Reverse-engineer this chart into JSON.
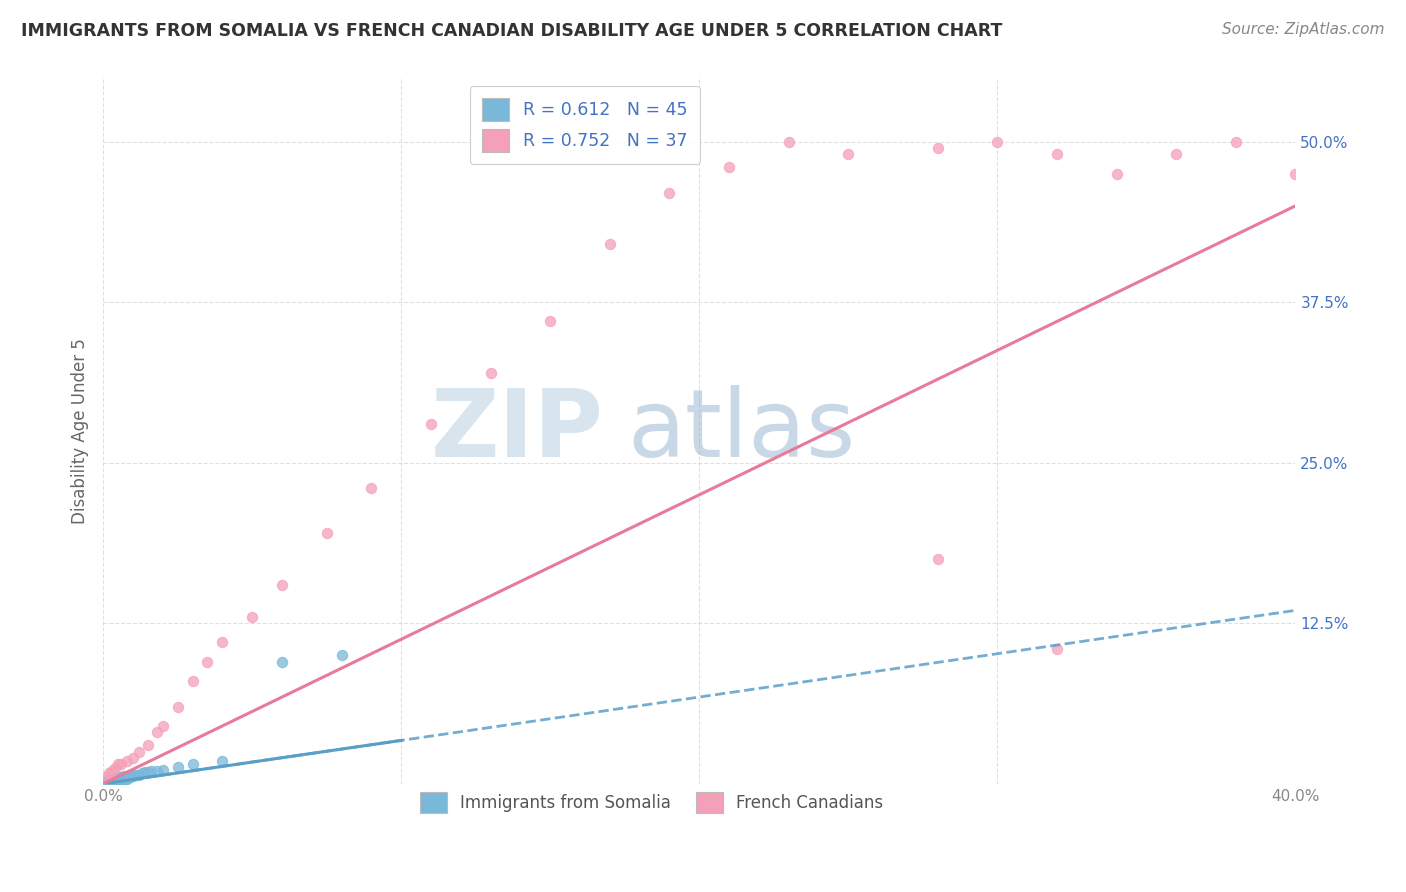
{
  "title": "IMMIGRANTS FROM SOMALIA VS FRENCH CANADIAN DISABILITY AGE UNDER 5 CORRELATION CHART",
  "source": "Source: ZipAtlas.com",
  "ylabel": "Disability Age Under 5",
  "xmin": 0.0,
  "xmax": 0.4,
  "ymin": 0.0,
  "ymax": 0.55,
  "yticks": [
    0.0,
    0.125,
    0.25,
    0.375,
    0.5
  ],
  "ytick_labels": [
    "",
    "12.5%",
    "25.0%",
    "37.5%",
    "50.0%"
  ],
  "xticks": [
    0.0,
    0.1,
    0.2,
    0.3,
    0.4
  ],
  "xtick_labels": [
    "0.0%",
    "",
    "",
    "",
    "40.0%"
  ],
  "blue_color": "#7ab8d9",
  "pink_color": "#f4a0b8",
  "blue_line_color": "#5a9fc8",
  "pink_line_color": "#e87a9a",
  "blue_R": 0.612,
  "blue_N": 45,
  "pink_R": 0.752,
  "pink_N": 37,
  "legend_label_blue": "Immigrants from Somalia",
  "legend_label_pink": "French Canadians",
  "blue_scatter_x": [
    0.001,
    0.001,
    0.002,
    0.002,
    0.002,
    0.003,
    0.003,
    0.003,
    0.003,
    0.004,
    0.004,
    0.004,
    0.004,
    0.005,
    0.005,
    0.005,
    0.005,
    0.006,
    0.006,
    0.006,
    0.006,
    0.007,
    0.007,
    0.007,
    0.007,
    0.008,
    0.008,
    0.008,
    0.009,
    0.009,
    0.01,
    0.01,
    0.011,
    0.012,
    0.013,
    0.014,
    0.015,
    0.016,
    0.018,
    0.02,
    0.025,
    0.03,
    0.04,
    0.06,
    0.08
  ],
  "blue_scatter_y": [
    0.001,
    0.002,
    0.001,
    0.002,
    0.003,
    0.001,
    0.002,
    0.003,
    0.004,
    0.002,
    0.003,
    0.003,
    0.004,
    0.002,
    0.003,
    0.004,
    0.005,
    0.003,
    0.004,
    0.004,
    0.005,
    0.003,
    0.004,
    0.005,
    0.006,
    0.004,
    0.005,
    0.006,
    0.005,
    0.006,
    0.006,
    0.007,
    0.007,
    0.007,
    0.008,
    0.009,
    0.009,
    0.01,
    0.01,
    0.011,
    0.013,
    0.015,
    0.018,
    0.095,
    0.1
  ],
  "pink_scatter_x": [
    0.001,
    0.002,
    0.003,
    0.004,
    0.005,
    0.006,
    0.008,
    0.01,
    0.012,
    0.015,
    0.018,
    0.02,
    0.025,
    0.03,
    0.035,
    0.04,
    0.05,
    0.06,
    0.075,
    0.09,
    0.11,
    0.13,
    0.15,
    0.17,
    0.19,
    0.21,
    0.23,
    0.25,
    0.28,
    0.3,
    0.32,
    0.34,
    0.36,
    0.38,
    0.4,
    0.32,
    0.28
  ],
  "pink_scatter_y": [
    0.005,
    0.008,
    0.01,
    0.012,
    0.015,
    0.015,
    0.018,
    0.02,
    0.025,
    0.03,
    0.04,
    0.045,
    0.06,
    0.08,
    0.095,
    0.11,
    0.13,
    0.155,
    0.195,
    0.23,
    0.28,
    0.32,
    0.36,
    0.42,
    0.46,
    0.48,
    0.5,
    0.49,
    0.495,
    0.5,
    0.49,
    0.475,
    0.49,
    0.5,
    0.475,
    0.105,
    0.175
  ],
  "blue_trendline_x": [
    0.0,
    0.4
  ],
  "blue_trendline_y": [
    0.0,
    0.135
  ],
  "pink_trendline_x": [
    0.0,
    0.4
  ],
  "pink_trendline_y": [
    0.0,
    0.45
  ],
  "watermark_zip": "ZIP",
  "watermark_atlas": "atlas",
  "background_color": "#ffffff",
  "grid_color": "#cccccc",
  "title_color": "#333333",
  "source_color": "#888888",
  "ylabel_color": "#666666",
  "tick_color": "#4472c4",
  "xtick_color": "#888888"
}
